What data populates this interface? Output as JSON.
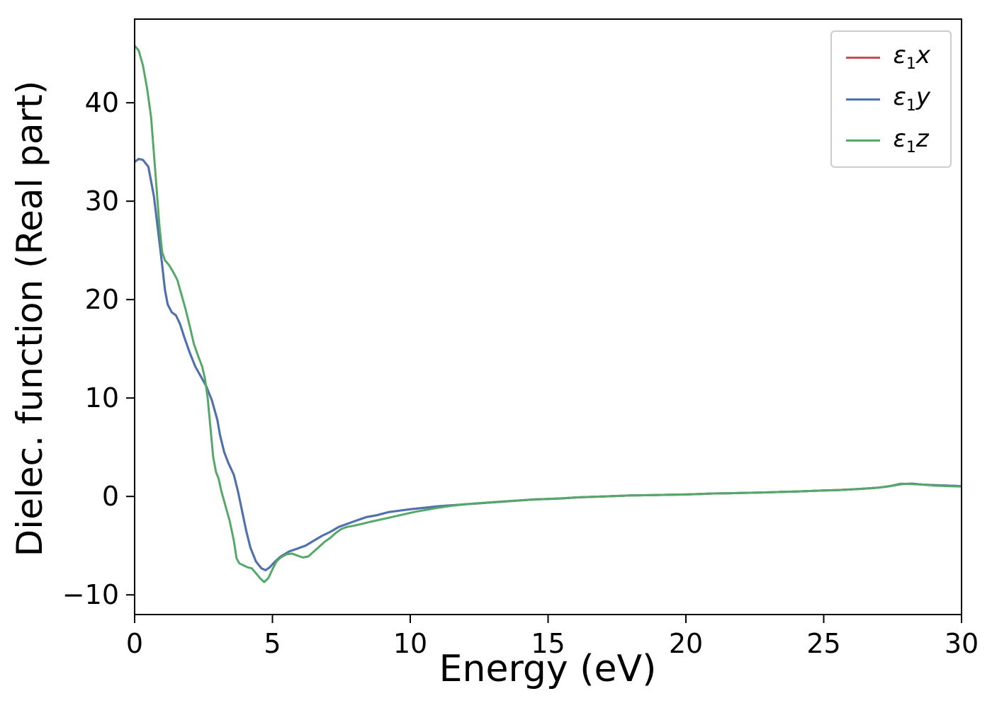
{
  "figure": {
    "background": "#ffffff"
  },
  "chart_data": {
    "type": "line",
    "title": "",
    "xlabel": "Energy (eV)",
    "ylabel": "Dielec. function (Real part)",
    "xlim": [
      0,
      30
    ],
    "ylim": [
      -12,
      48.5
    ],
    "xticks": {
      "values": [
        0,
        5,
        10,
        15,
        20,
        25,
        30
      ],
      "labels": [
        "0",
        "5",
        "10",
        "15",
        "20",
        "25",
        "30"
      ]
    },
    "yticks": {
      "values": [
        -10,
        0,
        10,
        20,
        30,
        40
      ],
      "labels": [
        "−10",
        "0",
        "10",
        "20",
        "30",
        "40"
      ]
    },
    "grid": false,
    "legend": {
      "position": "upper right"
    },
    "series": [
      {
        "name": "eps1x",
        "label_symbol": "ε",
        "label_sub": "1",
        "label_var": "x",
        "color": "#c44e52",
        "points": [
          [
            0,
            34
          ],
          [
            0.15,
            34.3
          ],
          [
            0.3,
            34.2
          ],
          [
            0.5,
            33.5
          ],
          [
            0.7,
            30.5
          ],
          [
            0.85,
            27
          ],
          [
            1.0,
            23.5
          ],
          [
            1.1,
            21
          ],
          [
            1.2,
            19.5
          ],
          [
            1.35,
            18.7
          ],
          [
            1.5,
            18.4
          ],
          [
            1.65,
            17.5
          ],
          [
            1.8,
            16.2
          ],
          [
            2.0,
            14.6
          ],
          [
            2.2,
            13.2
          ],
          [
            2.4,
            12.2
          ],
          [
            2.6,
            11.2
          ],
          [
            2.8,
            9.8
          ],
          [
            3.0,
            7.8
          ],
          [
            3.1,
            6.2
          ],
          [
            3.25,
            4.5
          ],
          [
            3.4,
            3.4
          ],
          [
            3.6,
            2.2
          ],
          [
            3.75,
            0.5
          ],
          [
            3.9,
            -1.5
          ],
          [
            4.05,
            -3.5
          ],
          [
            4.2,
            -5.2
          ],
          [
            4.4,
            -6.6
          ],
          [
            4.6,
            -7.3
          ],
          [
            4.75,
            -7.5
          ],
          [
            4.9,
            -7.2
          ],
          [
            5.1,
            -6.6
          ],
          [
            5.3,
            -6.1
          ],
          [
            5.6,
            -5.6
          ],
          [
            5.9,
            -5.3
          ],
          [
            6.2,
            -5.0
          ],
          [
            6.5,
            -4.5
          ],
          [
            6.8,
            -4.0
          ],
          [
            7.1,
            -3.6
          ],
          [
            7.4,
            -3.1
          ],
          [
            7.7,
            -2.8
          ],
          [
            8.0,
            -2.5
          ],
          [
            8.4,
            -2.1
          ],
          [
            8.8,
            -1.9
          ],
          [
            9.2,
            -1.6
          ],
          [
            9.6,
            -1.45
          ],
          [
            10,
            -1.3
          ],
          [
            10.5,
            -1.15
          ],
          [
            11,
            -1.0
          ],
          [
            11.5,
            -0.9
          ],
          [
            12,
            -0.8
          ],
          [
            12.5,
            -0.7
          ],
          [
            13,
            -0.6
          ],
          [
            13.5,
            -0.5
          ],
          [
            14,
            -0.4
          ],
          [
            14.5,
            -0.3
          ],
          [
            15,
            -0.25
          ],
          [
            15.5,
            -0.2
          ],
          [
            16,
            -0.1
          ],
          [
            16.5,
            -0.05
          ],
          [
            17,
            0.0
          ],
          [
            17.5,
            0.05
          ],
          [
            18,
            0.1
          ],
          [
            18.5,
            0.12
          ],
          [
            19,
            0.15
          ],
          [
            19.5,
            0.18
          ],
          [
            20,
            0.2
          ],
          [
            20.5,
            0.25
          ],
          [
            21,
            0.3
          ],
          [
            21.5,
            0.32
          ],
          [
            22,
            0.35
          ],
          [
            22.5,
            0.38
          ],
          [
            23,
            0.42
          ],
          [
            23.5,
            0.46
          ],
          [
            24,
            0.5
          ],
          [
            24.5,
            0.55
          ],
          [
            25,
            0.6
          ],
          [
            25.5,
            0.65
          ],
          [
            26,
            0.72
          ],
          [
            26.5,
            0.8
          ],
          [
            27,
            0.9
          ],
          [
            27.4,
            1.05
          ],
          [
            27.8,
            1.25
          ],
          [
            28.2,
            1.3
          ],
          [
            28.6,
            1.2
          ],
          [
            29,
            1.15
          ],
          [
            29.5,
            1.1
          ],
          [
            30,
            1.05
          ]
        ]
      },
      {
        "name": "eps1y",
        "label_symbol": "ε",
        "label_sub": "1",
        "label_var": "y",
        "color": "#4c72b0",
        "points": [
          [
            0,
            34
          ],
          [
            0.15,
            34.3
          ],
          [
            0.3,
            34.2
          ],
          [
            0.5,
            33.5
          ],
          [
            0.7,
            30.5
          ],
          [
            0.85,
            27
          ],
          [
            1.0,
            23.5
          ],
          [
            1.1,
            21
          ],
          [
            1.2,
            19.5
          ],
          [
            1.35,
            18.7
          ],
          [
            1.5,
            18.4
          ],
          [
            1.65,
            17.5
          ],
          [
            1.8,
            16.2
          ],
          [
            2.0,
            14.6
          ],
          [
            2.2,
            13.2
          ],
          [
            2.4,
            12.2
          ],
          [
            2.6,
            11.2
          ],
          [
            2.8,
            9.8
          ],
          [
            3.0,
            7.8
          ],
          [
            3.1,
            6.2
          ],
          [
            3.25,
            4.5
          ],
          [
            3.4,
            3.4
          ],
          [
            3.6,
            2.2
          ],
          [
            3.75,
            0.5
          ],
          [
            3.9,
            -1.5
          ],
          [
            4.05,
            -3.5
          ],
          [
            4.2,
            -5.2
          ],
          [
            4.4,
            -6.6
          ],
          [
            4.6,
            -7.3
          ],
          [
            4.75,
            -7.5
          ],
          [
            4.9,
            -7.2
          ],
          [
            5.1,
            -6.6
          ],
          [
            5.3,
            -6.1
          ],
          [
            5.6,
            -5.6
          ],
          [
            5.9,
            -5.3
          ],
          [
            6.2,
            -5.0
          ],
          [
            6.5,
            -4.5
          ],
          [
            6.8,
            -4.0
          ],
          [
            7.1,
            -3.6
          ],
          [
            7.4,
            -3.1
          ],
          [
            7.7,
            -2.8
          ],
          [
            8.0,
            -2.5
          ],
          [
            8.4,
            -2.1
          ],
          [
            8.8,
            -1.9
          ],
          [
            9.2,
            -1.6
          ],
          [
            9.6,
            -1.45
          ],
          [
            10,
            -1.3
          ],
          [
            10.5,
            -1.15
          ],
          [
            11,
            -1.0
          ],
          [
            11.5,
            -0.9
          ],
          [
            12,
            -0.8
          ],
          [
            12.5,
            -0.7
          ],
          [
            13,
            -0.6
          ],
          [
            13.5,
            -0.5
          ],
          [
            14,
            -0.4
          ],
          [
            14.5,
            -0.3
          ],
          [
            15,
            -0.25
          ],
          [
            15.5,
            -0.2
          ],
          [
            16,
            -0.1
          ],
          [
            16.5,
            -0.05
          ],
          [
            17,
            0.0
          ],
          [
            17.5,
            0.05
          ],
          [
            18,
            0.1
          ],
          [
            18.5,
            0.12
          ],
          [
            19,
            0.15
          ],
          [
            19.5,
            0.18
          ],
          [
            20,
            0.2
          ],
          [
            20.5,
            0.25
          ],
          [
            21,
            0.3
          ],
          [
            21.5,
            0.32
          ],
          [
            22,
            0.35
          ],
          [
            22.5,
            0.38
          ],
          [
            23,
            0.42
          ],
          [
            23.5,
            0.46
          ],
          [
            24,
            0.5
          ],
          [
            24.5,
            0.55
          ],
          [
            25,
            0.6
          ],
          [
            25.5,
            0.65
          ],
          [
            26,
            0.72
          ],
          [
            26.5,
            0.8
          ],
          [
            27,
            0.9
          ],
          [
            27.4,
            1.05
          ],
          [
            27.8,
            1.25
          ],
          [
            28.2,
            1.3
          ],
          [
            28.6,
            1.2
          ],
          [
            29,
            1.15
          ],
          [
            29.5,
            1.1
          ],
          [
            30,
            1.05
          ]
        ]
      },
      {
        "name": "eps1z",
        "label_symbol": "ε",
        "label_sub": "1",
        "label_var": "z",
        "color": "#55a868",
        "points": [
          [
            0,
            45.8
          ],
          [
            0.15,
            45.3
          ],
          [
            0.3,
            43.8
          ],
          [
            0.45,
            41.5
          ],
          [
            0.6,
            38.5
          ],
          [
            0.75,
            33
          ],
          [
            0.9,
            27.5
          ],
          [
            1.0,
            24.8
          ],
          [
            1.1,
            24.0
          ],
          [
            1.25,
            23.5
          ],
          [
            1.4,
            22.8
          ],
          [
            1.55,
            22.0
          ],
          [
            1.7,
            20.5
          ],
          [
            1.85,
            19.0
          ],
          [
            2.0,
            17.3
          ],
          [
            2.15,
            15.5
          ],
          [
            2.3,
            14.3
          ],
          [
            2.45,
            13.2
          ],
          [
            2.55,
            12.0
          ],
          [
            2.65,
            10.0
          ],
          [
            2.75,
            7.0
          ],
          [
            2.85,
            4.0
          ],
          [
            2.95,
            2.5
          ],
          [
            3.05,
            1.8
          ],
          [
            3.15,
            0.5
          ],
          [
            3.3,
            -1.0
          ],
          [
            3.45,
            -2.5
          ],
          [
            3.6,
            -4.5
          ],
          [
            3.7,
            -6.3
          ],
          [
            3.8,
            -6.8
          ],
          [
            3.95,
            -7.0
          ],
          [
            4.1,
            -7.2
          ],
          [
            4.25,
            -7.3
          ],
          [
            4.4,
            -7.8
          ],
          [
            4.55,
            -8.3
          ],
          [
            4.7,
            -8.7
          ],
          [
            4.85,
            -8.3
          ],
          [
            5.0,
            -7.4
          ],
          [
            5.15,
            -6.6
          ],
          [
            5.3,
            -6.2
          ],
          [
            5.5,
            -5.9
          ],
          [
            5.7,
            -5.8
          ],
          [
            5.9,
            -6.0
          ],
          [
            6.1,
            -6.2
          ],
          [
            6.3,
            -6.1
          ],
          [
            6.5,
            -5.6
          ],
          [
            6.7,
            -5.1
          ],
          [
            6.9,
            -4.6
          ],
          [
            7.1,
            -4.2
          ],
          [
            7.3,
            -3.7
          ],
          [
            7.5,
            -3.3
          ],
          [
            7.7,
            -3.1
          ],
          [
            8.0,
            -2.95
          ],
          [
            8.3,
            -2.75
          ],
          [
            8.6,
            -2.55
          ],
          [
            9.0,
            -2.3
          ],
          [
            9.4,
            -2.05
          ],
          [
            9.8,
            -1.8
          ],
          [
            10.2,
            -1.55
          ],
          [
            10.6,
            -1.35
          ],
          [
            11,
            -1.15
          ],
          [
            11.5,
            -0.95
          ],
          [
            12,
            -0.8
          ],
          [
            12.5,
            -0.68
          ],
          [
            13,
            -0.58
          ],
          [
            13.5,
            -0.48
          ],
          [
            14,
            -0.4
          ],
          [
            14.5,
            -0.32
          ],
          [
            15,
            -0.25
          ],
          [
            15.5,
            -0.18
          ],
          [
            16,
            -0.1
          ],
          [
            16.5,
            -0.05
          ],
          [
            17,
            0.0
          ],
          [
            17.5,
            0.05
          ],
          [
            18,
            0.1
          ],
          [
            18.5,
            0.12
          ],
          [
            19,
            0.15
          ],
          [
            19.5,
            0.18
          ],
          [
            20,
            0.2
          ],
          [
            20.5,
            0.25
          ],
          [
            21,
            0.3
          ],
          [
            21.5,
            0.32
          ],
          [
            22,
            0.35
          ],
          [
            22.5,
            0.38
          ],
          [
            23,
            0.42
          ],
          [
            23.5,
            0.46
          ],
          [
            24,
            0.5
          ],
          [
            24.5,
            0.55
          ],
          [
            25,
            0.6
          ],
          [
            25.5,
            0.65
          ],
          [
            26,
            0.72
          ],
          [
            26.5,
            0.8
          ],
          [
            27,
            0.9
          ],
          [
            27.4,
            1.05
          ],
          [
            27.8,
            1.3
          ],
          [
            28.2,
            1.25
          ],
          [
            28.6,
            1.2
          ],
          [
            29,
            1.1
          ],
          [
            29.5,
            1.05
          ],
          [
            30,
            1.0
          ]
        ]
      }
    ]
  },
  "style": {
    "axis_color": "#000000",
    "tick_label_size": 38,
    "line_width": 3
  }
}
